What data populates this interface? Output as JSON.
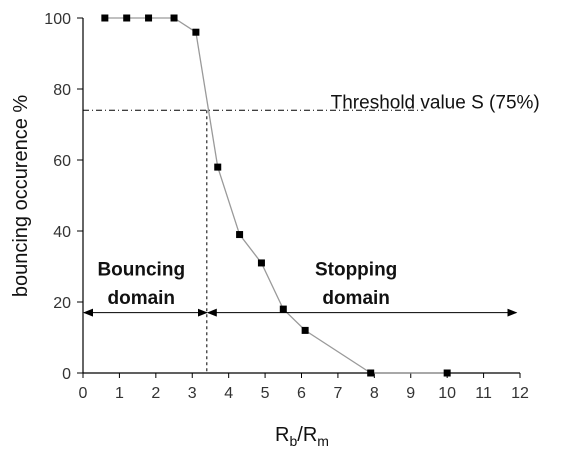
{
  "chart_data": {
    "type": "scatter",
    "xlabel_main": "R",
    "xlabel_sub1": "b",
    "xlabel_sep": "/R",
    "xlabel_sub2": "m",
    "ylabel": "bouncing occurence %",
    "xlim": [
      0,
      12
    ],
    "ylim": [
      0,
      100
    ],
    "xticks": [
      0,
      1,
      2,
      3,
      4,
      5,
      6,
      7,
      8,
      9,
      10,
      11,
      12
    ],
    "yticks": [
      0,
      20,
      40,
      60,
      80,
      100
    ],
    "grid": false,
    "series": [
      {
        "points": [
          {
            "x": 0.6,
            "y": 100
          },
          {
            "x": 1.2,
            "y": 100
          },
          {
            "x": 1.8,
            "y": 100
          },
          {
            "x": 2.5,
            "y": 100
          },
          {
            "x": 3.1,
            "y": 96
          },
          {
            "x": 3.7,
            "y": 58
          },
          {
            "x": 4.3,
            "y": 39
          },
          {
            "x": 4.9,
            "y": 31
          },
          {
            "x": 5.5,
            "y": 18
          },
          {
            "x": 6.1,
            "y": 12
          },
          {
            "x": 7.9,
            "y": 0
          },
          {
            "x": 10.0,
            "y": 0
          }
        ]
      }
    ],
    "threshold": {
      "label": "Threshold value S (75%)",
      "y": 74,
      "x": 3.4
    },
    "domains": [
      {
        "line1": "Bouncing",
        "line2": "domain",
        "x_from": 0,
        "x_to": 3.4,
        "arrow_y": 17,
        "label_x": 1.6
      },
      {
        "line1": "Stopping",
        "line2": "domain",
        "x_from": 3.4,
        "x_to": 11.9,
        "arrow_y": 17,
        "label_x": 7.5
      }
    ]
  }
}
